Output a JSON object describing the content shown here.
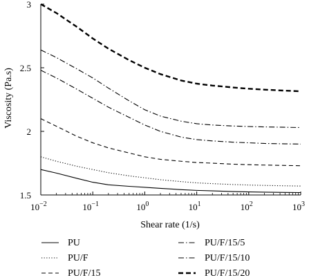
{
  "chart_data": {
    "type": "line",
    "xlabel": "Shear rate (1/s)",
    "ylabel": "Viscosity (Pa.s)",
    "xscale": "log",
    "xlim": [
      0.01,
      1000
    ],
    "ylim": [
      1.5,
      3
    ],
    "x_ticks": [
      0.01,
      0.1,
      1,
      10,
      100,
      1000
    ],
    "x_tick_labels": [
      {
        "base": "10",
        "exp": "−2"
      },
      {
        "base": "10",
        "exp": "−1"
      },
      {
        "base": "10",
        "exp": "0"
      },
      {
        "base": "10",
        "exp": "1"
      },
      {
        "base": "10",
        "exp": "2"
      },
      {
        "base": "10",
        "exp": "3"
      }
    ],
    "y_ticks": [
      1.5,
      2,
      2.5,
      3
    ],
    "y_tick_labels": [
      "1.5",
      "2",
      "2.5",
      "3"
    ],
    "grid": false,
    "legend_position": "bottom",
    "x": [
      0.01,
      0.02,
      0.05,
      0.1,
      0.2,
      0.5,
      1,
      2,
      5,
      10,
      20,
      50,
      100,
      200,
      500,
      1000
    ],
    "series": [
      {
        "name": "PU",
        "style": "solid",
        "color": "#000000",
        "values": [
          1.7,
          1.672,
          1.63,
          1.6,
          1.58,
          1.568,
          1.56,
          1.552,
          1.542,
          1.536,
          1.532,
          1.527,
          1.524,
          1.522,
          1.52,
          1.519
        ]
      },
      {
        "name": "PU/F",
        "style": "dotted",
        "color": "#000000",
        "values": [
          1.8,
          1.765,
          1.725,
          1.7,
          1.675,
          1.65,
          1.635,
          1.62,
          1.605,
          1.595,
          1.589,
          1.582,
          1.578,
          1.575,
          1.572,
          1.57
        ]
      },
      {
        "name": "PU/F/15",
        "style": "dashed",
        "color": "#000000",
        "values": [
          2.1,
          2.04,
          1.96,
          1.91,
          1.87,
          1.83,
          1.8,
          1.78,
          1.765,
          1.755,
          1.75,
          1.742,
          1.738,
          1.735,
          1.732,
          1.73
        ]
      },
      {
        "name": "PU/F/15/5",
        "style": "dashdot",
        "color": "#000000",
        "values": [
          2.48,
          2.42,
          2.33,
          2.26,
          2.19,
          2.11,
          2.05,
          2.0,
          1.955,
          1.935,
          1.925,
          1.915,
          1.91,
          1.905,
          1.902,
          1.9
        ]
      },
      {
        "name": "PU/F/15/10",
        "style": "dashdot",
        "color": "#000000",
        "values": [
          2.64,
          2.58,
          2.49,
          2.42,
          2.34,
          2.24,
          2.17,
          2.12,
          2.08,
          2.06,
          2.05,
          2.042,
          2.038,
          2.035,
          2.032,
          2.03
        ]
      },
      {
        "name": "PU/F/15/20",
        "style": "bold-dashed",
        "color": "#000000",
        "values": [
          3.0,
          2.93,
          2.82,
          2.73,
          2.65,
          2.56,
          2.5,
          2.45,
          2.4,
          2.375,
          2.36,
          2.345,
          2.335,
          2.328,
          2.32,
          2.315
        ]
      }
    ]
  }
}
